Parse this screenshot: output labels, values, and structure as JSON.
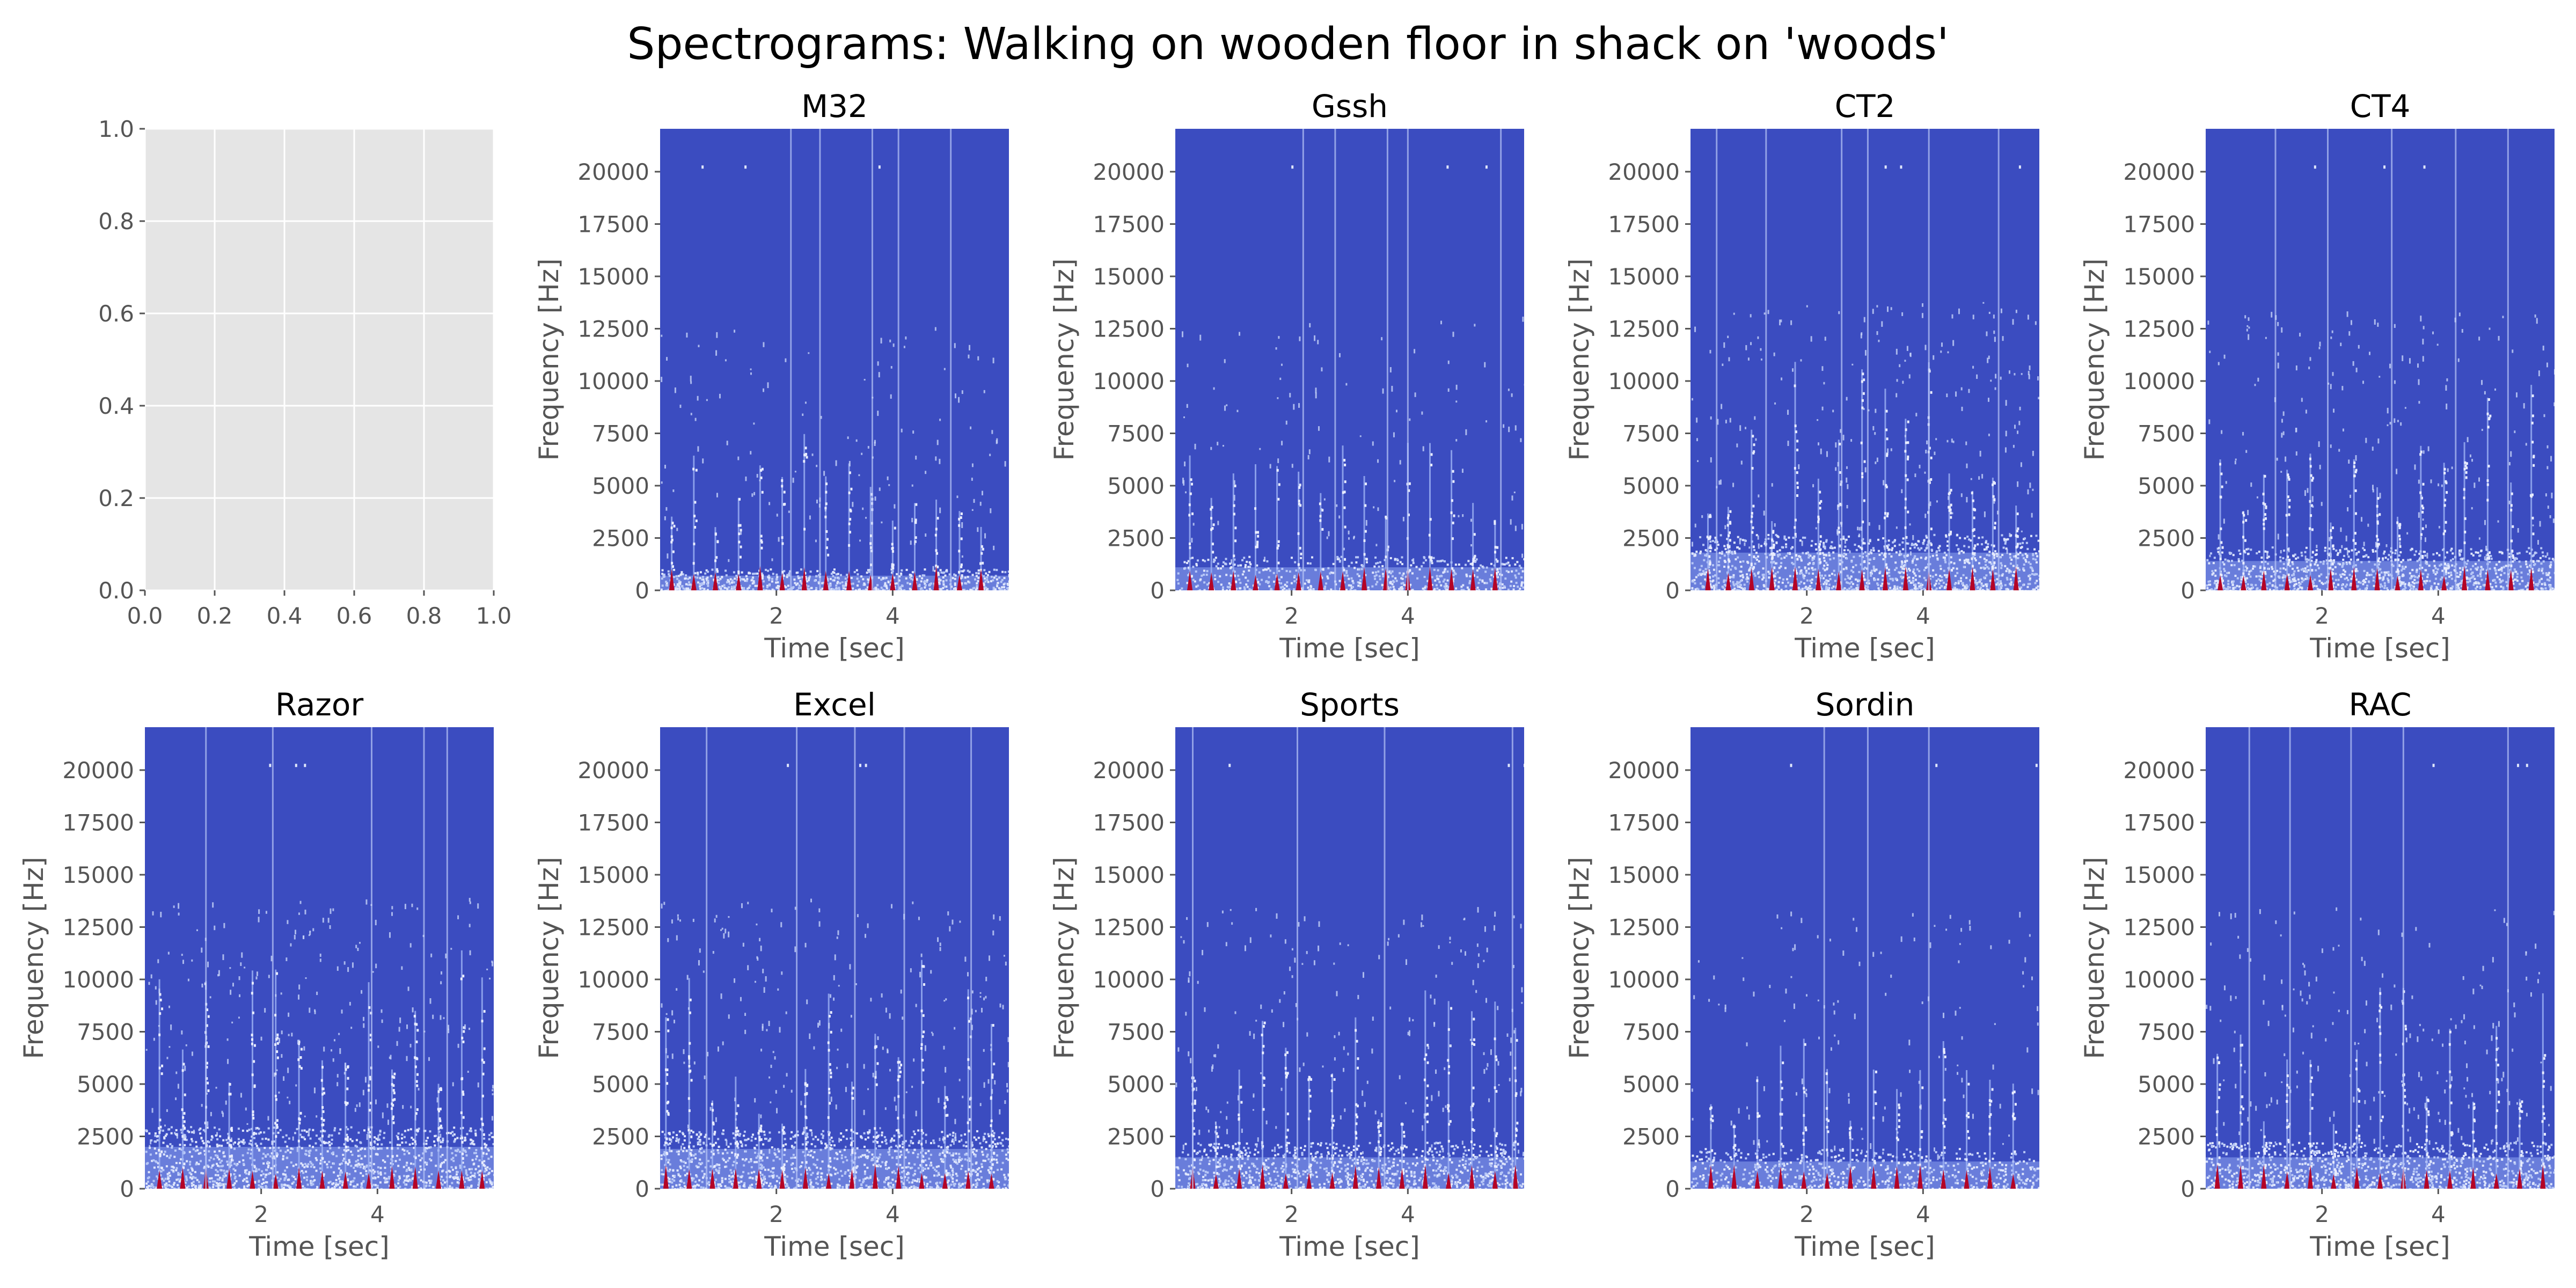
{
  "figure": {
    "title": "Spectrograms: Walking on wooden floor in shack on 'woods'"
  },
  "chart_data": [
    {
      "type": "line",
      "title": "",
      "xlabel": "",
      "ylabel": "",
      "xlim": [
        0.0,
        1.0
      ],
      "ylim": [
        0.0,
        1.0
      ],
      "xticks": [
        "0.0",
        "0.2",
        "0.4",
        "0.6",
        "0.8",
        "1.0"
      ],
      "yticks": [
        "0.0",
        "0.2",
        "0.4",
        "0.6",
        "0.8",
        "1.0"
      ],
      "grid": true,
      "series": []
    },
    {
      "type": "heatmap",
      "title": "M32",
      "xlabel": "Time [sec]",
      "ylabel": "Frequency [Hz]",
      "xlim": [
        0.0,
        6.0
      ],
      "ylim": [
        0,
        22050
      ],
      "xticks": [
        "2",
        "4"
      ],
      "yticks": [
        "0",
        "2500",
        "5000",
        "7500",
        "10000",
        "12500",
        "15000",
        "17500",
        "20000"
      ],
      "colormap": "coolwarm",
      "background_color": "#3b4cc0",
      "hot_color": "#b40426",
      "noise_floor_hz": 700,
      "footstep_times_sec": [
        0.2,
        0.58,
        0.95,
        1.35,
        1.72,
        2.1,
        2.48,
        2.85,
        3.25,
        3.62,
        4.0,
        4.38,
        4.75,
        5.15,
        5.52
      ],
      "bright_streak_times_sec": [
        2.25,
        2.75,
        3.65,
        4.1,
        5.0
      ],
      "density": 0.55
    },
    {
      "type": "heatmap",
      "title": "Gssh",
      "xlabel": "Time [sec]",
      "ylabel": "Frequency [Hz]",
      "xlim": [
        0.0,
        6.0
      ],
      "ylim": [
        0,
        22050
      ],
      "xticks": [
        "2",
        "4"
      ],
      "yticks": [
        "0",
        "2500",
        "5000",
        "7500",
        "10000",
        "12500",
        "15000",
        "17500",
        "20000"
      ],
      "colormap": "coolwarm",
      "background_color": "#3b4cc0",
      "hot_color": "#b40426",
      "noise_floor_hz": 1100,
      "footstep_times_sec": [
        0.25,
        0.62,
        1.0,
        1.38,
        1.75,
        2.12,
        2.5,
        2.88,
        3.25,
        3.62,
        4.0,
        4.38,
        4.75,
        5.12,
        5.5
      ],
      "bright_streak_times_sec": [
        2.2,
        2.75,
        3.65,
        4.0,
        5.6
      ],
      "density": 0.45
    },
    {
      "type": "heatmap",
      "title": "CT2",
      "xlabel": "Time [sec]",
      "ylabel": "Frequency [Hz]",
      "xlim": [
        0.0,
        6.0
      ],
      "ylim": [
        0,
        22050
      ],
      "xticks": [
        "2",
        "4"
      ],
      "yticks": [
        "0",
        "2500",
        "5000",
        "7500",
        "10000",
        "12500",
        "15000",
        "17500",
        "20000"
      ],
      "colormap": "coolwarm",
      "background_color": "#3b4cc0",
      "hot_color": "#b40426",
      "noise_floor_hz": 1800,
      "footstep_times_sec": [
        0.3,
        0.65,
        1.05,
        1.4,
        1.8,
        2.2,
        2.55,
        2.95,
        3.35,
        3.7,
        4.1,
        4.45,
        4.85,
        5.2,
        5.6
      ],
      "bright_streak_times_sec": [
        0.45,
        1.3,
        2.6,
        3.05,
        4.1,
        5.3
      ],
      "density": 0.9
    },
    {
      "type": "heatmap",
      "title": "CT4",
      "xlabel": "Time [sec]",
      "ylabel": "Frequency [Hz]",
      "xlim": [
        0.0,
        6.0
      ],
      "ylim": [
        0,
        22050
      ],
      "xticks": [
        "2",
        "4"
      ],
      "yticks": [
        "0",
        "2500",
        "5000",
        "7500",
        "10000",
        "12500",
        "15000",
        "17500",
        "20000"
      ],
      "colormap": "coolwarm",
      "background_color": "#3b4cc0",
      "hot_color": "#b40426",
      "noise_floor_hz": 1400,
      "footstep_times_sec": [
        0.25,
        0.65,
        1.0,
        1.4,
        1.8,
        2.15,
        2.55,
        2.95,
        3.3,
        3.7,
        4.1,
        4.45,
        4.85,
        5.25,
        5.6
      ],
      "bright_streak_times_sec": [
        1.2,
        2.1,
        3.2,
        4.3,
        5.2
      ],
      "density": 0.8
    },
    {
      "type": "heatmap",
      "title": "Razor",
      "xlabel": "Time [sec]",
      "ylabel": "Frequency [Hz]",
      "xlim": [
        0.0,
        6.0
      ],
      "ylim": [
        0,
        22050
      ],
      "xticks": [
        "2",
        "4"
      ],
      "yticks": [
        "0",
        "2500",
        "5000",
        "7500",
        "10000",
        "12500",
        "15000",
        "17500",
        "20000"
      ],
      "colormap": "coolwarm",
      "background_color": "#3b4cc0",
      "hot_color": "#b40426",
      "noise_floor_hz": 2000,
      "footstep_times_sec": [
        0.25,
        0.65,
        1.05,
        1.45,
        1.85,
        2.25,
        2.65,
        3.05,
        3.45,
        3.85,
        4.25,
        4.65,
        5.05,
        5.45,
        5.8
      ],
      "bright_streak_times_sec": [
        1.05,
        2.2,
        3.9,
        4.8,
        5.2
      ],
      "density": 0.95
    },
    {
      "type": "heatmap",
      "title": "Excel",
      "xlabel": "Time [sec]",
      "ylabel": "Frequency [Hz]",
      "xlim": [
        0.0,
        6.0
      ],
      "ylim": [
        0,
        22050
      ],
      "xticks": [
        "2",
        "4"
      ],
      "yticks": [
        "0",
        "2500",
        "5000",
        "7500",
        "10000",
        "12500",
        "15000",
        "17500",
        "20000"
      ],
      "colormap": "coolwarm",
      "background_color": "#3b4cc0",
      "hot_color": "#b40426",
      "noise_floor_hz": 1900,
      "footstep_times_sec": [
        0.1,
        0.5,
        0.9,
        1.3,
        1.7,
        2.1,
        2.5,
        2.9,
        3.3,
        3.7,
        4.1,
        4.5,
        4.9,
        5.3,
        5.7
      ],
      "bright_streak_times_sec": [
        0.8,
        2.35,
        3.35,
        4.2,
        5.35
      ],
      "density": 0.9
    },
    {
      "type": "heatmap",
      "title": "Sports",
      "xlabel": "Time [sec]",
      "ylabel": "Frequency [Hz]",
      "xlim": [
        0.0,
        6.0
      ],
      "ylim": [
        0,
        22050
      ],
      "xticks": [
        "2",
        "4"
      ],
      "yticks": [
        "0",
        "2500",
        "5000",
        "7500",
        "10000",
        "12500",
        "15000",
        "17500",
        "20000"
      ],
      "colormap": "coolwarm",
      "background_color": "#3b4cc0",
      "hot_color": "#b40426",
      "noise_floor_hz": 1500,
      "footstep_times_sec": [
        0.3,
        0.7,
        1.1,
        1.5,
        1.9,
        2.3,
        2.7,
        3.1,
        3.5,
        3.9,
        4.3,
        4.7,
        5.1,
        5.5,
        5.85
      ],
      "bright_streak_times_sec": [
        0.3,
        2.1,
        3.6,
        5.8
      ],
      "density": 0.75
    },
    {
      "type": "heatmap",
      "title": "Sordin",
      "xlabel": "Time [sec]",
      "ylabel": "Frequency [Hz]",
      "xlim": [
        0.0,
        6.0
      ],
      "ylim": [
        0,
        22050
      ],
      "xticks": [
        "2",
        "4"
      ],
      "yticks": [
        "0",
        "2500",
        "5000",
        "7500",
        "10000",
        "12500",
        "15000",
        "17500",
        "20000"
      ],
      "colormap": "coolwarm",
      "background_color": "#3b4cc0",
      "hot_color": "#b40426",
      "noise_floor_hz": 1300,
      "footstep_times_sec": [
        0.35,
        0.75,
        1.15,
        1.55,
        1.95,
        2.35,
        2.75,
        3.15,
        3.55,
        3.95,
        4.35,
        4.75,
        5.15,
        5.55
      ],
      "bright_streak_times_sec": [
        2.3,
        3.05,
        4.1
      ],
      "density": 0.5
    },
    {
      "type": "heatmap",
      "title": "RAC",
      "xlabel": "Time [sec]",
      "ylabel": "Frequency [Hz]",
      "xlim": [
        0.0,
        6.0
      ],
      "ylim": [
        0,
        22050
      ],
      "xticks": [
        "2",
        "4"
      ],
      "yticks": [
        "0",
        "2500",
        "5000",
        "7500",
        "10000",
        "12500",
        "15000",
        "17500",
        "20000"
      ],
      "colormap": "coolwarm",
      "background_color": "#3b4cc0",
      "hot_color": "#b40426",
      "noise_floor_hz": 1500,
      "footstep_times_sec": [
        0.2,
        0.6,
        1.0,
        1.4,
        1.8,
        2.2,
        2.6,
        3.0,
        3.4,
        3.8,
        4.2,
        4.6,
        5.0,
        5.4,
        5.8
      ],
      "bright_streak_times_sec": [
        0.75,
        1.45,
        2.5,
        3.4,
        5.2
      ],
      "density": 0.75
    }
  ]
}
